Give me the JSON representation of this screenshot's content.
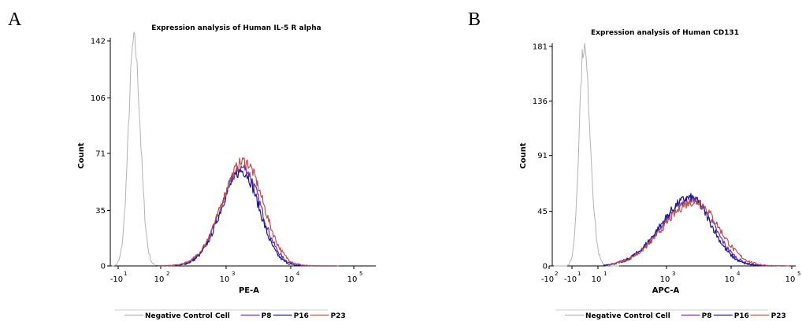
{
  "panels": {
    "a_letter": "A",
    "b_letter": "B"
  },
  "colors": {
    "negative_control": "#b4b4b4",
    "p8": "#7a2a9a",
    "p16": "#1a1a9a",
    "p23": "#c0504d"
  },
  "chart_data": [
    {
      "type": "area",
      "title": "Expression analysis of Human IL-5 R alpha",
      "xlabel": "PE-A",
      "ylabel": "Count",
      "x_scale": "biexponential (log)",
      "y_ticks": [
        "0",
        "35",
        "71",
        "106",
        "142"
      ],
      "ylim": [
        0,
        142
      ],
      "x_ticks": [
        {
          "base": "-10",
          "sup": "1"
        },
        {
          "base": "10",
          "sup": "2"
        },
        {
          "base": "10",
          "sup": "3"
        },
        {
          "base": "10",
          "sup": "4"
        },
        {
          "base": "10",
          "sup": "5"
        }
      ],
      "series": [
        {
          "name": "Negative Control Cell",
          "color": "#b4b4b4",
          "peak_x": "~0",
          "peak_count": 142
        },
        {
          "name": "P8",
          "color": "#7a2a9a",
          "peak_x": "~1.5e3",
          "peak_count": 62
        },
        {
          "name": "P16",
          "color": "#1a1a9a",
          "peak_x": "~1.5e3",
          "peak_count": 60
        },
        {
          "name": "P23",
          "color": "#c0504d",
          "peak_x": "~1.6e3",
          "peak_count": 66
        }
      ],
      "legend": [
        "Negative Control Cell",
        "P8",
        "P16",
        "P23"
      ],
      "legend_position": "bottom",
      "grid": false
    },
    {
      "type": "area",
      "title": "Expression analysis of Human CD131",
      "xlabel": "APC-A",
      "ylabel": "Count",
      "x_scale": "biexponential (log)",
      "y_ticks": [
        "0",
        "45",
        "91",
        "136",
        "181"
      ],
      "ylim": [
        0,
        181
      ],
      "x_ticks": [
        {
          "base": "-10",
          "sup": "2"
        },
        {
          "base": "-10",
          "sup": "1"
        },
        {
          "base": "10",
          "sup": "1"
        },
        {
          "base": "10",
          "sup": "3"
        },
        {
          "base": "10",
          "sup": "4"
        },
        {
          "base": "10",
          "sup": "5"
        }
      ],
      "series": [
        {
          "name": "Negative Control Cell",
          "color": "#b4b4b4",
          "peak_x": "~0",
          "peak_count": 181
        },
        {
          "name": "P8",
          "color": "#7a2a9a",
          "peak_x": "~2e3",
          "peak_count": 55
        },
        {
          "name": "P16",
          "color": "#1a1a9a",
          "peak_x": "~2e3",
          "peak_count": 56
        },
        {
          "name": "P23",
          "color": "#c0504d",
          "peak_x": "~2.2e3",
          "peak_count": 53
        }
      ],
      "legend": [
        "Negative Control Cell",
        "P8",
        "P16",
        "P23"
      ],
      "legend_position": "bottom",
      "grid": false
    }
  ]
}
